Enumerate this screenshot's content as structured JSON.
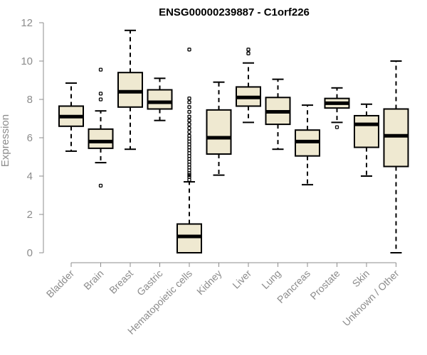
{
  "chart_data": {
    "type": "box",
    "title": "ENSG00000239887 - C1orf226",
    "xlabel": "",
    "ylabel": "Expression",
    "ylim": [
      0,
      12
    ],
    "yticks": [
      0,
      2,
      4,
      6,
      8,
      10,
      12
    ],
    "grid": false,
    "colors": {
      "box_fill": "#efe9d1",
      "stroke": "#000000",
      "axis": "#8c8c8c"
    },
    "categories": [
      "Bladder",
      "Brain",
      "Breast",
      "Gastric",
      "Hematopoietic cells",
      "Kidney",
      "Liver",
      "Lung",
      "Pancreas",
      "Prostate",
      "Skin",
      "Unknown / Other"
    ],
    "boxes": [
      {
        "category": "Bladder",
        "whisker_low": 5.3,
        "q1": 6.6,
        "median": 7.1,
        "q3": 7.65,
        "whisker_high": 8.85,
        "outliers": []
      },
      {
        "category": "Brain",
        "whisker_low": 4.7,
        "q1": 5.45,
        "median": 5.8,
        "q3": 6.45,
        "whisker_high": 7.4,
        "outliers": [
          3.5,
          8.0,
          8.3,
          9.55
        ]
      },
      {
        "category": "Breast",
        "whisker_low": 5.4,
        "q1": 7.6,
        "median": 8.4,
        "q3": 9.4,
        "whisker_high": 11.6,
        "outliers": []
      },
      {
        "category": "Gastric",
        "whisker_low": 6.9,
        "q1": 7.5,
        "median": 7.85,
        "q3": 8.5,
        "whisker_high": 9.1,
        "outliers": []
      },
      {
        "category": "Hematopoietic cells",
        "whisker_low": 0.0,
        "q1": 0.0,
        "median": 0.85,
        "q3": 1.5,
        "whisker_high": 3.7,
        "outliers": [
          3.8,
          3.95,
          4.05,
          4.15,
          4.3,
          4.45,
          4.6,
          4.75,
          4.9,
          5.05,
          5.2,
          5.35,
          5.5,
          5.65,
          5.8,
          5.95,
          6.1,
          6.3,
          6.5,
          6.7,
          6.9,
          7.1,
          7.35,
          7.6,
          7.85,
          8.05,
          10.6
        ]
      },
      {
        "category": "Kidney",
        "whisker_low": 4.05,
        "q1": 5.15,
        "median": 6.0,
        "q3": 7.45,
        "whisker_high": 8.9,
        "outliers": []
      },
      {
        "category": "Liver",
        "whisker_low": 6.8,
        "q1": 7.65,
        "median": 8.1,
        "q3": 8.65,
        "whisker_high": 9.9,
        "outliers": [
          10.4,
          10.6
        ]
      },
      {
        "category": "Lung",
        "whisker_low": 5.4,
        "q1": 6.7,
        "median": 7.35,
        "q3": 8.1,
        "whisker_high": 9.05,
        "outliers": []
      },
      {
        "category": "Pancreas",
        "whisker_low": 3.55,
        "q1": 5.05,
        "median": 5.8,
        "q3": 6.4,
        "whisker_high": 7.7,
        "outliers": []
      },
      {
        "category": "Prostate",
        "whisker_low": 6.8,
        "q1": 7.55,
        "median": 7.8,
        "q3": 8.05,
        "whisker_high": 8.6,
        "outliers": [
          6.55
        ]
      },
      {
        "category": "Skin",
        "whisker_low": 4.0,
        "q1": 5.5,
        "median": 6.7,
        "q3": 7.15,
        "whisker_high": 7.75,
        "outliers": []
      },
      {
        "category": "Unknown / Other",
        "whisker_low": 0.0,
        "q1": 4.5,
        "median": 6.1,
        "q3": 7.5,
        "whisker_high": 10.0,
        "outliers": []
      }
    ]
  }
}
